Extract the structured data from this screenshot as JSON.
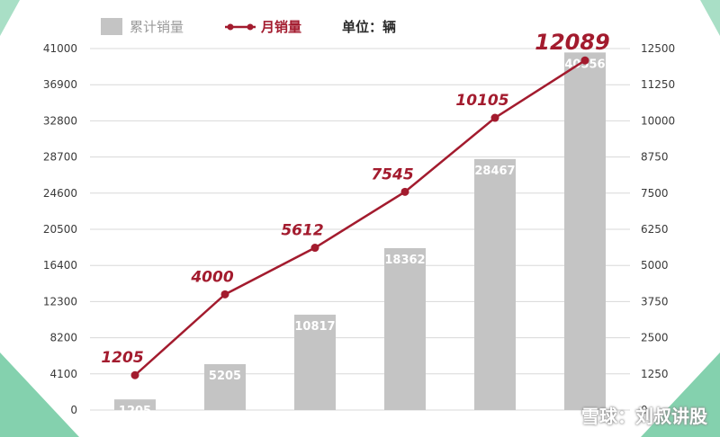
{
  "chart_data": {
    "type": "bar+line",
    "legend": {
      "placement": "top",
      "bar_label": "累计销量",
      "line_label": "月销量",
      "unit_label": "单位：辆"
    },
    "categories": [
      "",
      "",
      "",
      "",
      "",
      ""
    ],
    "bar_series": {
      "name": "累计销量",
      "axis": "left",
      "values": [
        1205,
        5205,
        10817,
        18362,
        28467,
        40556
      ]
    },
    "line_series": {
      "name": "月销量",
      "axis": "right",
      "values": [
        1205,
        4000,
        5612,
        7545,
        10105,
        12089
      ]
    },
    "left_axis": {
      "min": 0,
      "max": 41000,
      "ticks": [
        0,
        4100,
        8200,
        12300,
        16400,
        20500,
        24600,
        28700,
        32800,
        36900,
        41000
      ]
    },
    "right_axis": {
      "min": 0,
      "max": 12500,
      "ticks": [
        0,
        1250,
        2500,
        3750,
        5000,
        6250,
        7500,
        8750,
        10000,
        11250,
        12500
      ]
    },
    "grid": true,
    "colors": {
      "bar": "#c4c4c4",
      "line": "#a31b2e",
      "axis_text": "#3a3a3a",
      "grid": "#d8d8d8",
      "corner": "#6fc9a0"
    }
  },
  "watermark": "雪球：刘叔讲股"
}
